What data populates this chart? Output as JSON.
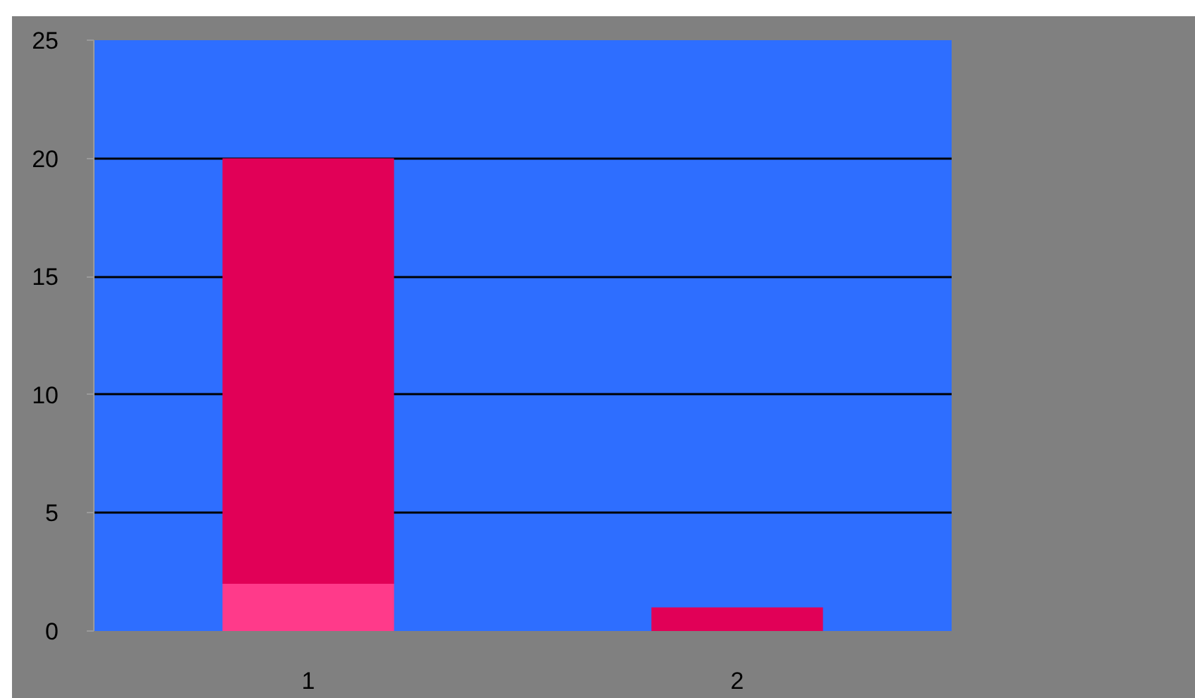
{
  "chart_data": {
    "type": "bar",
    "stacked": true,
    "categories": [
      "1",
      "2"
    ],
    "series": [
      {
        "color": "#ff3a8a",
        "values": [
          2,
          0
        ]
      },
      {
        "color": "#e10057",
        "values": [
          18,
          1
        ]
      }
    ],
    "ylim": [
      0,
      25
    ],
    "yticks": [
      0,
      5,
      10,
      15,
      20,
      25
    ],
    "grid": "y"
  }
}
